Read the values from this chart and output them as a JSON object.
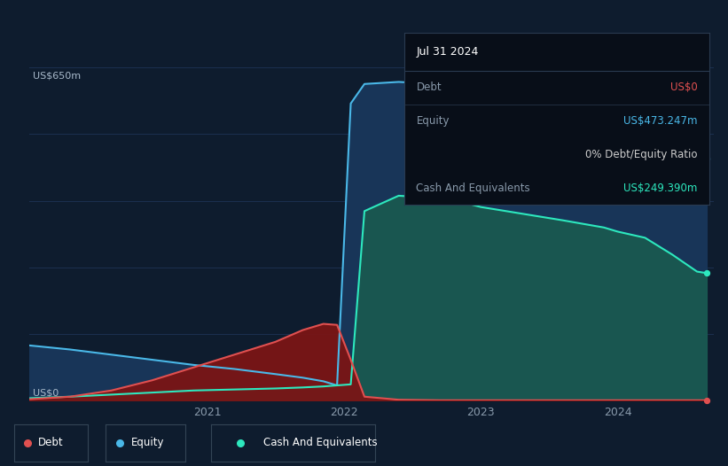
{
  "background_color": "#0e1c2e",
  "plot_bg_color": "#0e1c2e",
  "grid_color": "#1c3050",
  "ylim": [
    0,
    700
  ],
  "y_label_650": "US$650m",
  "y_label_0": "US$0",
  "x_ticks": [
    2021,
    2022,
    2023,
    2024
  ],
  "xmin": 2019.7,
  "xmax": 2024.7,
  "debt_color": "#e05050",
  "equity_color": "#4ab8e8",
  "cash_color": "#2de8be",
  "debt_fill_color": "#7a1515",
  "equity_fill_color": "#183558",
  "cash_fill_color": "#1a5a50",
  "debt_x": [
    2019.7,
    2020.0,
    2020.3,
    2020.6,
    2020.9,
    2021.2,
    2021.5,
    2021.7,
    2021.85,
    2021.95,
    2022.05,
    2022.15,
    2022.4,
    2022.7,
    2023.0,
    2023.5,
    2024.0,
    2024.5,
    2024.65
  ],
  "debt_y": [
    3,
    8,
    20,
    40,
    65,
    90,
    115,
    138,
    150,
    148,
    80,
    8,
    2,
    1,
    1,
    1,
    1,
    1,
    1
  ],
  "equity_x": [
    2019.7,
    2020.0,
    2020.3,
    2020.6,
    2020.9,
    2021.2,
    2021.5,
    2021.7,
    2021.85,
    2021.95,
    2022.05,
    2022.15,
    2022.4,
    2022.7,
    2023.0,
    2023.3,
    2023.6,
    2024.0,
    2024.3,
    2024.58,
    2024.65
  ],
  "equity_y": [
    108,
    100,
    90,
    80,
    70,
    62,
    52,
    45,
    38,
    30,
    580,
    618,
    622,
    618,
    590,
    575,
    568,
    545,
    520,
    476,
    473
  ],
  "cash_x": [
    2019.7,
    2020.0,
    2020.3,
    2020.6,
    2020.9,
    2021.2,
    2021.5,
    2021.7,
    2021.85,
    2021.95,
    2022.05,
    2022.15,
    2022.4,
    2022.7,
    2022.9,
    2023.0,
    2023.3,
    2023.6,
    2023.9,
    2024.0,
    2024.2,
    2024.4,
    2024.58,
    2024.65
  ],
  "cash_y": [
    5,
    8,
    12,
    16,
    20,
    22,
    24,
    26,
    28,
    30,
    32,
    370,
    400,
    395,
    385,
    378,
    365,
    352,
    338,
    330,
    318,
    285,
    252,
    249
  ],
  "legend_items": [
    {
      "label": "Debt",
      "color": "#e05050"
    },
    {
      "label": "Equity",
      "color": "#4ab8e8"
    },
    {
      "label": "Cash And Equivalents",
      "color": "#2de8be"
    }
  ],
  "tooltip_title": "Jul 31 2024",
  "tooltip_rows": [
    {
      "label": "Debt",
      "value": "US$0",
      "value_color": "#e05050"
    },
    {
      "label": "Equity",
      "value": "US$473.247m",
      "value_color": "#4ab8e8"
    },
    {
      "label": "",
      "value": "0% Debt/Equity Ratio",
      "value_color": "#cccccc"
    },
    {
      "label": "Cash And Equivalents",
      "value": "US$249.390m",
      "value_color": "#2de8be"
    }
  ],
  "tooltip_bg": "#080e18",
  "tooltip_border": "#2a3a50"
}
